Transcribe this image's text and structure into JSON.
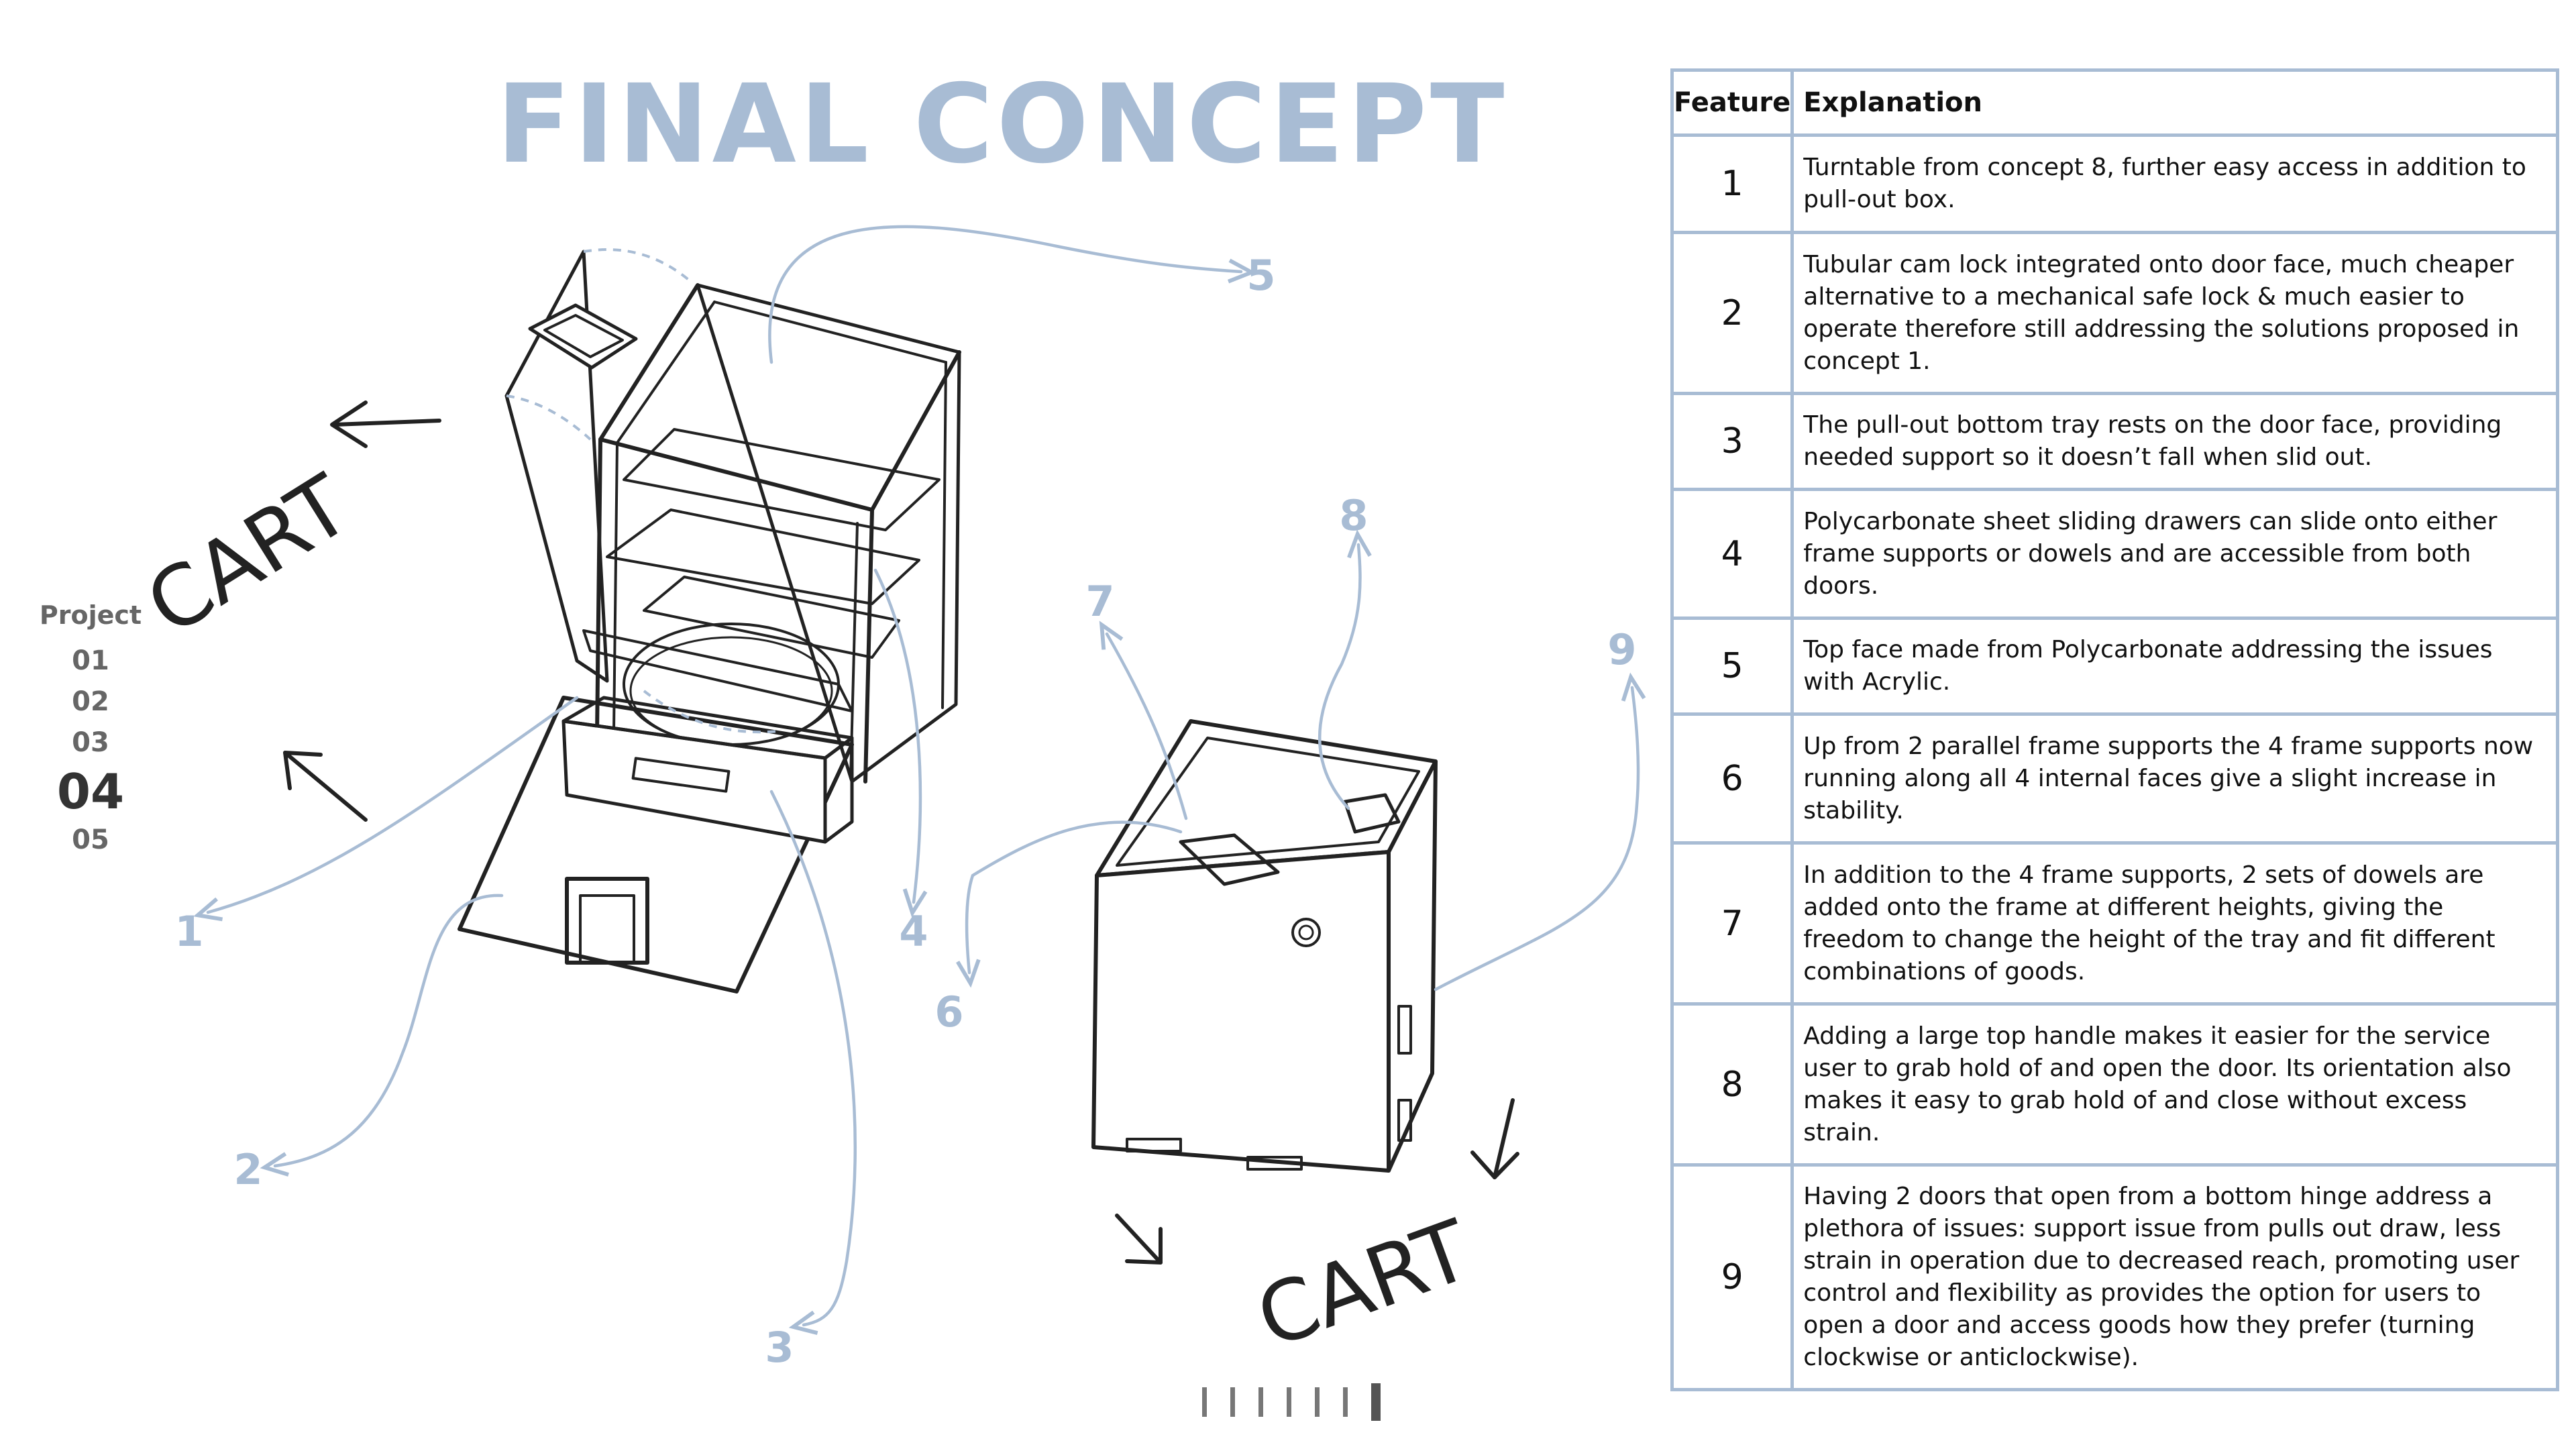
{
  "title": "FINAL CONCEPT",
  "nav": {
    "label": "Project",
    "items": [
      "01",
      "02",
      "03",
      "04",
      "05"
    ],
    "active_index": 3
  },
  "sketch": {
    "cart_labels": [
      "CART",
      "CART"
    ],
    "callouts": [
      "1",
      "2",
      "3",
      "4",
      "5",
      "6",
      "7",
      "8",
      "9"
    ],
    "accent_color": "#a8bcd4"
  },
  "table": {
    "headers": [
      "Feature",
      "Explanation"
    ],
    "rows": [
      {
        "feature": "1",
        "explanation": "Turntable from concept 8, further easy access in addition to pull-out box."
      },
      {
        "feature": "2",
        "explanation": "Tubular cam lock integrated onto door face, much cheaper alternative to a mechanical safe lock & much easier to operate therefore still addressing the solutions proposed in concept 1."
      },
      {
        "feature": "3",
        "explanation": "The pull-out bottom tray rests on the door face, providing needed support so it doesn’t fall when slid out."
      },
      {
        "feature": "4",
        "explanation": "Polycarbonate sheet sliding drawers can slide onto either frame supports or dowels and are accessible from both doors."
      },
      {
        "feature": "5",
        "explanation": "Top face made from Polycarbonate addressing the issues with Acrylic."
      },
      {
        "feature": "6",
        "explanation": "Up from 2 parallel frame supports the 4 frame supports now running along all 4 internal faces give a slight increase in stability."
      },
      {
        "feature": "7",
        "explanation": "In addition to the 4 frame supports, 2 sets of dowels are added onto the frame at different heights, giving the freedom to change the height of the tray and fit different combinations of goods."
      },
      {
        "feature": "8",
        "explanation": "Adding a large top handle makes it easier for the service user to grab hold of and open the door. Its orientation also makes it easy to grab hold of and close without excess strain."
      },
      {
        "feature": "9",
        "explanation": "Having 2 doors that open from a bottom hinge address a plethora of issues: support issue from pulls out draw, less strain in operation due to decreased reach, promoting user control and flexibility as provides the option for users to open a door and access goods how they prefer (turning clockwise or anticlockwise)."
      }
    ]
  },
  "pager": {
    "count": 7,
    "active_index": 6
  }
}
